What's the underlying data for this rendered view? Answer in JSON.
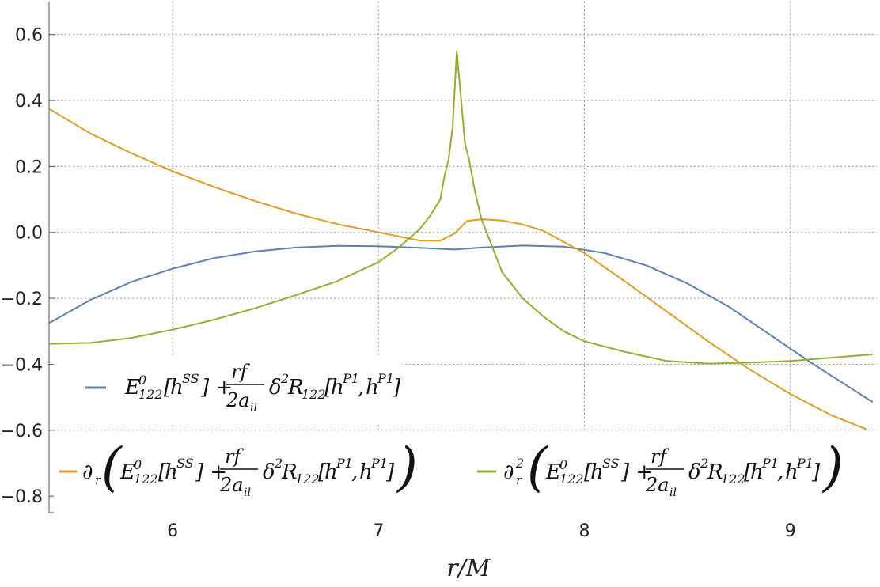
{
  "chart_data": {
    "type": "line",
    "title": "",
    "xlabel": "r/M",
    "ylabel": "",
    "xlim": [
      5.4,
      9.42
    ],
    "ylim": [
      -0.85,
      0.7
    ],
    "xticks": [
      6,
      7,
      8,
      9
    ],
    "xtick_labels": [
      "6",
      "7",
      "8",
      "9"
    ],
    "yticks": [
      -0.8,
      -0.6,
      -0.4,
      -0.2,
      0.0,
      0.2,
      0.4,
      0.6
    ],
    "ytick_labels": [
      "−0.8",
      "−0.6",
      "−0.4",
      "−0.2",
      "0.0",
      "0.2",
      "0.4",
      "0.6"
    ],
    "grid": true,
    "legend_position": "bottom",
    "series": [
      {
        "name": "E^0_122[h^SS] + (rf / 2a_il) δ²R_122[h^P1, h^P1]",
        "color": "#5E81B5",
        "x": [
          5.4,
          5.6,
          5.8,
          6.0,
          6.2,
          6.4,
          6.6,
          6.8,
          7.0,
          7.2,
          7.37,
          7.5,
          7.7,
          7.9,
          8.1,
          8.3,
          8.5,
          8.7,
          8.9,
          9.1,
          9.3,
          9.4
        ],
        "y": [
          -0.275,
          -0.205,
          -0.15,
          -0.11,
          -0.078,
          -0.058,
          -0.046,
          -0.041,
          -0.042,
          -0.047,
          -0.052,
          -0.046,
          -0.04,
          -0.043,
          -0.063,
          -0.1,
          -0.155,
          -0.225,
          -0.31,
          -0.395,
          -0.475,
          -0.515
        ]
      },
      {
        "name": "∂_r ( E^0_122[h^SS] + (rf / 2a_il) δ²R_122[h^P1, h^P1] )",
        "color": "#E19C24",
        "x": [
          5.4,
          5.6,
          5.8,
          6.0,
          6.2,
          6.4,
          6.6,
          6.8,
          7.0,
          7.2,
          7.3,
          7.37,
          7.43,
          7.5,
          7.6,
          7.7,
          7.8,
          8.0,
          8.2,
          8.4,
          8.6,
          8.8,
          9.0,
          9.2,
          9.37
        ],
        "y": [
          0.375,
          0.3,
          0.24,
          0.185,
          0.138,
          0.095,
          0.057,
          0.025,
          0.0,
          -0.025,
          -0.025,
          -0.003,
          0.035,
          0.04,
          0.036,
          0.024,
          0.005,
          -0.063,
          -0.15,
          -0.24,
          -0.33,
          -0.415,
          -0.49,
          -0.555,
          -0.597
        ]
      },
      {
        "name": "∂²_r ( E^0_122[h^SS] + (rf / 2a_il) δ²R_122[h^P1, h^P1] )",
        "color": "#8FB131",
        "x": [
          5.4,
          5.6,
          5.8,
          6.0,
          6.2,
          6.4,
          6.6,
          6.8,
          7.0,
          7.1,
          7.2,
          7.25,
          7.3,
          7.32,
          7.34,
          7.36,
          7.38,
          7.42,
          7.44,
          7.47,
          7.5,
          7.55,
          7.6,
          7.7,
          7.8,
          7.9,
          8.0,
          8.2,
          8.4,
          8.6,
          8.8,
          9.0,
          9.2,
          9.4
        ],
        "y": [
          -0.338,
          -0.335,
          -0.32,
          -0.295,
          -0.265,
          -0.23,
          -0.19,
          -0.148,
          -0.09,
          -0.045,
          0.01,
          0.05,
          0.1,
          0.17,
          0.22,
          0.32,
          0.55,
          0.27,
          0.22,
          0.12,
          0.04,
          -0.04,
          -0.12,
          -0.2,
          -0.255,
          -0.3,
          -0.33,
          -0.363,
          -0.39,
          -0.398,
          -0.395,
          -0.39,
          -0.38,
          -0.37
        ]
      }
    ]
  }
}
